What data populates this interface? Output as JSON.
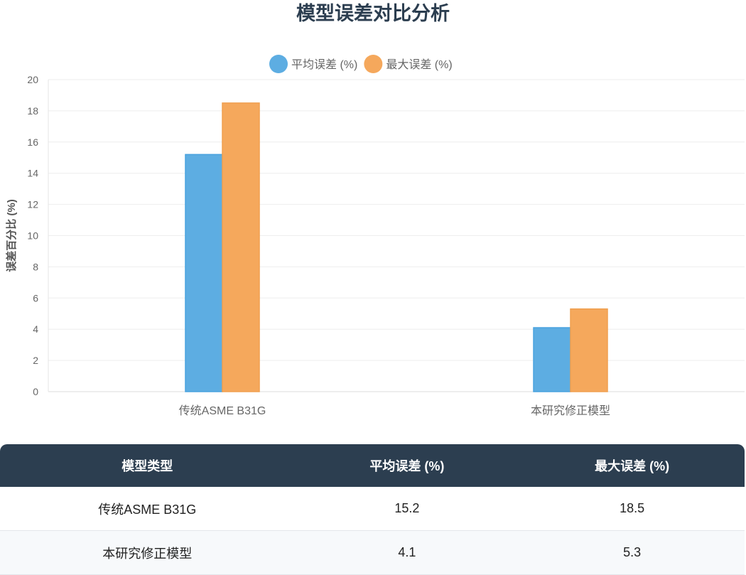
{
  "chart_data": {
    "type": "bar",
    "title": "模型误差对比分析",
    "categories": [
      "传统ASME B31G",
      "本研究修正模型"
    ],
    "series": [
      {
        "name": "平均误差 (%)",
        "values": [
          15.2,
          4.1
        ],
        "color": "#5dade2"
      },
      {
        "name": "最大误差 (%)",
        "values": [
          18.5,
          5.3
        ],
        "color": "#f5a85c"
      }
    ],
    "xlabel": "",
    "ylabel": "误差百分比 (%)",
    "ylim": [
      0,
      20
    ],
    "yticks": [
      0,
      2,
      4,
      6,
      8,
      10,
      12,
      14,
      16,
      18,
      20
    ],
    "grid": true,
    "legend": "top"
  },
  "table": {
    "headers": [
      "模型类型",
      "平均误差 (%)",
      "最大误差 (%)"
    ],
    "rows": [
      [
        "传统ASME B31G",
        "15.2",
        "18.5"
      ],
      [
        "本研究修正模型",
        "4.1",
        "5.3"
      ]
    ]
  }
}
